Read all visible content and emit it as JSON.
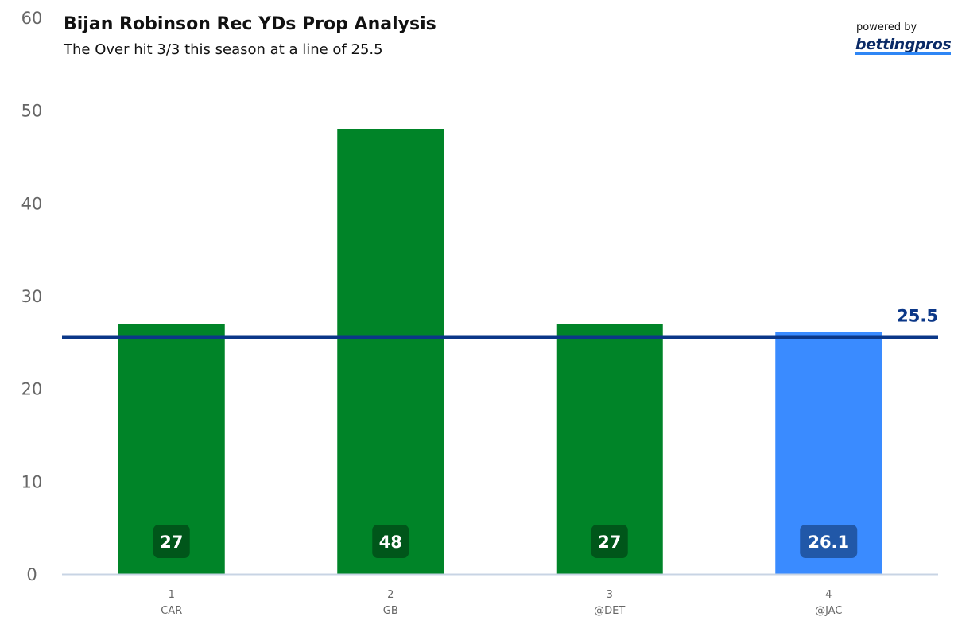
{
  "header": {
    "powered_by": "powered by",
    "logo_text": "bettingpros"
  },
  "chart_data": {
    "type": "bar",
    "title": "Bijan Robinson Rec YDs Prop Analysis",
    "subtitle": "The Over hit 3/3 this season at a line of 25.5",
    "categories": [
      {
        "game": "1",
        "opponent": "CAR"
      },
      {
        "game": "2",
        "opponent": "GB"
      },
      {
        "game": "3",
        "opponent": "@DET"
      },
      {
        "game": "4",
        "opponent": "@JAC"
      }
    ],
    "values": [
      27,
      48,
      27,
      26.1
    ],
    "data_labels": [
      "27",
      "48",
      "27",
      "26.1"
    ],
    "bar_types": [
      "actual",
      "actual",
      "actual",
      "projection"
    ],
    "ylim": [
      0,
      60
    ],
    "yticks": [
      0,
      10,
      20,
      30,
      40,
      50,
      60
    ],
    "line": {
      "value": 25.5,
      "label": "25.5"
    },
    "grid": false,
    "colors": {
      "actual": "#008428",
      "actual_label_bg": "#00561a",
      "projection": "#3a8bff",
      "projection_label_bg": "#2158a8",
      "line": "#0b3788",
      "axis": "#c8d4e4"
    }
  }
}
